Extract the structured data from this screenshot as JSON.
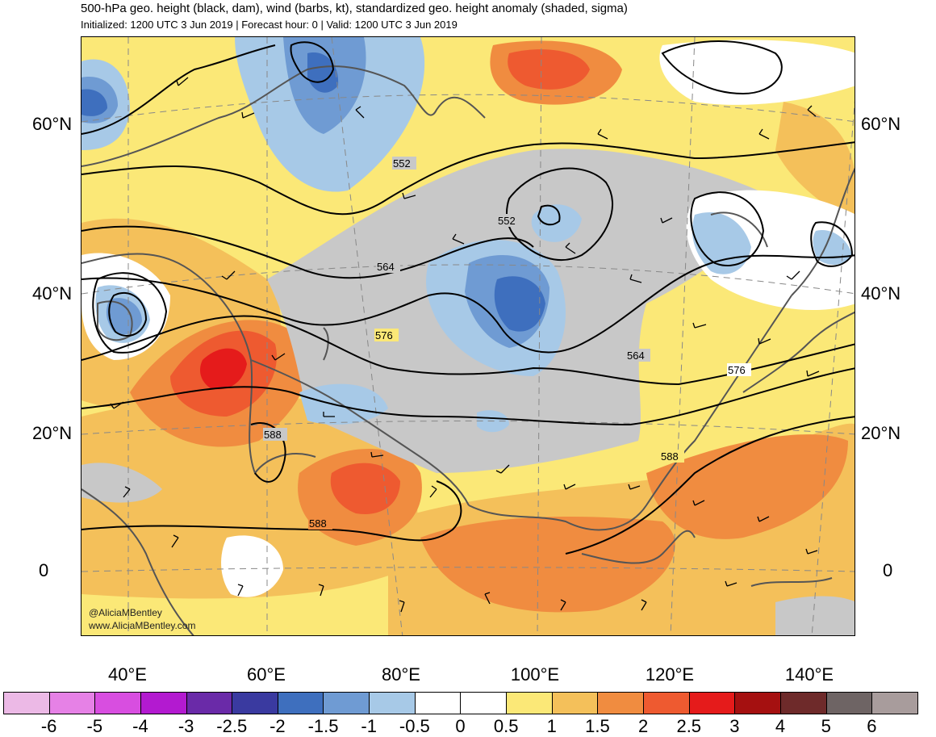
{
  "header": {
    "title": "500-hPa geo. height (black, dam), wind (barbs, kt), standardized geo. height anomaly (shaded, sigma)",
    "subtitle": "Initialized: 1200 UTC 3 Jun 2019 | Forecast hour: 0 | Valid: 1200 UTC 3 Jun 2019"
  },
  "map": {
    "lat_labels": [
      "60°N",
      "40°N",
      "20°N",
      "0"
    ],
    "lon_labels": [
      "40°E",
      "60°E",
      "80°E",
      "100°E",
      "120°E",
      "140°E"
    ],
    "contour_labels": [
      "552",
      "552",
      "564",
      "564",
      "576",
      "576",
      "588",
      "588",
      "588"
    ],
    "credit_handle": "@AliciaMBentley",
    "credit_site": "www.AliciaMBentley.com",
    "colors": {
      "land_outline": "#555555",
      "contour": "#000000",
      "neutral_gray": "#c8c8c8"
    }
  },
  "colorbar": {
    "labels": [
      "-6",
      "-5",
      "-4",
      "-3",
      "-2.5",
      "-2",
      "-1.5",
      "-1",
      "-0.5",
      "0",
      "0.5",
      "1",
      "1.5",
      "2",
      "2.5",
      "3",
      "4",
      "5",
      "6"
    ],
    "colors": [
      "#ecb9e6",
      "#e681e6",
      "#d84ee0",
      "#b31ad0",
      "#6a2aa8",
      "#3a3aa0",
      "#3e6fbe",
      "#6f9bd3",
      "#a7c9e7",
      "#ffffff",
      "#ffffff",
      "#fbe877",
      "#f4c05a",
      "#f08c40",
      "#ee5a30",
      "#e51b1b",
      "#a51010",
      "#6e2a2a",
      "#6e6464",
      "#a89c9c"
    ]
  }
}
